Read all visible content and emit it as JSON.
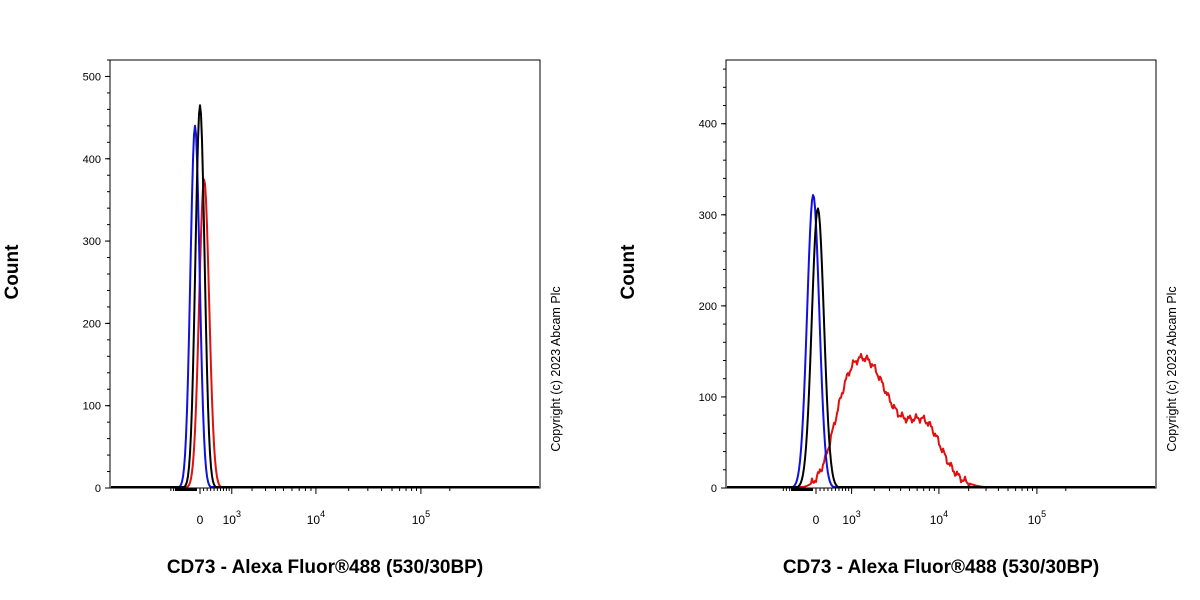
{
  "chart_data": [
    {
      "type": "line",
      "title": "",
      "xlabel": "CD73 - Alexa Fluor®488 (530/30BP)",
      "ylabel": "Count",
      "x_scale": "biexponential",
      "ylim": [
        0,
        520
      ],
      "y_ticks": [
        0,
        100,
        200,
        300,
        400,
        500
      ],
      "x_ticks": [
        {
          "value": 0,
          "base": "0",
          "exp": ""
        },
        {
          "value": 1000,
          "base": "10",
          "exp": "3"
        },
        {
          "value": 10000,
          "base": "10",
          "exp": "4"
        },
        {
          "value": 100000,
          "base": "10",
          "exp": "5"
        }
      ],
      "copyright": "Copyright (c) 2023 Abcam Plc",
      "colors": {
        "black": "#000000",
        "blue": "#1010e0",
        "red": "#e01010"
      },
      "series": [
        {
          "color": "black",
          "peaks": [
            {
              "center": 0,
              "height": 465,
              "width": 0.055
            }
          ]
        },
        {
          "color": "blue",
          "peaks": [
            {
              "center": -0.06,
              "height": 440,
              "width": 0.055
            }
          ]
        },
        {
          "color": "red",
          "peaks": [
            {
              "center": 0.05,
              "height": 375,
              "width": 0.06
            }
          ]
        }
      ]
    },
    {
      "type": "line",
      "title": "",
      "xlabel": "CD73 - Alexa Fluor®488 (530/30BP)",
      "ylabel": "Count",
      "x_scale": "biexponential",
      "ylim": [
        0,
        470
      ],
      "y_ticks": [
        0,
        100,
        200,
        300,
        400
      ],
      "x_ticks": [
        {
          "value": 0,
          "base": "0",
          "exp": ""
        },
        {
          "value": 1000,
          "base": "10",
          "exp": "3"
        },
        {
          "value": 10000,
          "base": "10",
          "exp": "4"
        },
        {
          "value": 100000,
          "base": "10",
          "exp": "5"
        }
      ],
      "copyright": "Copyright (c) 2023 Abcam Plc",
      "colors": {
        "black": "#000000",
        "blue": "#1010e0",
        "red": "#e01010"
      },
      "series": [
        {
          "color": "black",
          "peaks": [
            {
              "center": 0.02,
              "height": 307,
              "width": 0.065
            }
          ]
        },
        {
          "color": "blue",
          "peaks": [
            {
              "center": -0.03,
              "height": 322,
              "width": 0.065
            }
          ]
        },
        {
          "color": "red",
          "peaks": [
            {
              "center": 0.3,
              "height": 60,
              "width": 0.15
            },
            {
              "center": 0.56,
              "height": 118,
              "width": 0.2
            },
            {
              "center": 1.05,
              "height": 62,
              "width": 0.25
            },
            {
              "center": 1.2,
              "height": 18,
              "width": 0.12
            }
          ]
        }
      ]
    }
  ]
}
